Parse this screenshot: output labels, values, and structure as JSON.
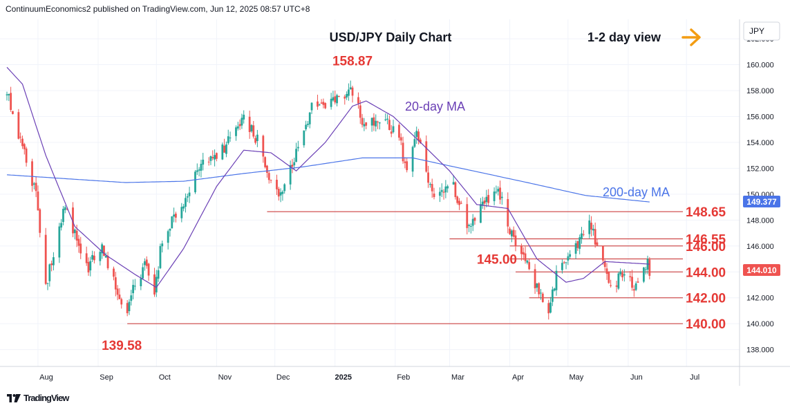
{
  "header": {
    "publisher": "ContinuumEconomics2 published on TradingView.com, Jun 12, 2025 08:57 UTC+8"
  },
  "footer": {
    "brand": "TradingView",
    "logo": "tradingview-logo-icon"
  },
  "colors": {
    "up": "#26a69a",
    "down": "#ef5350",
    "ma20": "#6a3fb5",
    "ma200": "#4a74e8",
    "level_text": "#e53935",
    "arrow": "#f39c12",
    "grid": "#f0f3fa"
  },
  "chart_data": {
    "type": "candlestick",
    "title": "USD/JPY Daily Chart",
    "view": "1-2 day view",
    "view_icon": "arrow-right-icon",
    "currency": "JPY",
    "last_price": "144.010",
    "ma200_value": "149.377",
    "ylim": [
      136.7,
      163.5
    ],
    "y_ticks": [
      "138.000",
      "140.000",
      "142.000",
      "144.000",
      "146.000",
      "148.000",
      "150.000",
      "152.000",
      "154.000",
      "156.000",
      "158.000",
      "160.000",
      "162.000"
    ],
    "x_ticks": [
      "Aug",
      "Sep",
      "Oct",
      "Nov",
      "Dec",
      "2025",
      "Feb",
      "Mar",
      "Apr",
      "May",
      "Jun",
      "Jul"
    ],
    "series": [
      {
        "name": "20-day MA"
      },
      {
        "name": "200-day MA"
      }
    ],
    "levels": [
      {
        "value": 148.65,
        "label": "148.65",
        "from": "2024-11-27"
      },
      {
        "value": 146.55,
        "label": "146.55",
        "from": "2025-03-01"
      },
      {
        "value": 146.0,
        "label": "146.00",
        "from": "2025-04-01"
      },
      {
        "value": 145.0,
        "label": "145.00",
        "from": "2025-04-01"
      },
      {
        "value": 144.0,
        "label": "144.00",
        "from": "2025-04-04"
      },
      {
        "value": 142.0,
        "label": "142.00",
        "from": "2025-04-11"
      },
      {
        "value": 140.0,
        "label": "140.00",
        "from": "2024-09-16"
      }
    ],
    "annotations": [
      {
        "text": "158.87",
        "date": "2025-01-10",
        "value": 158.87
      },
      {
        "text": "139.58",
        "date": "2024-09-16",
        "value": 139.58
      }
    ],
    "anchors": [
      [
        "2024-07-16",
        157.8
      ],
      [
        "2024-07-23",
        154.0
      ],
      [
        "2024-07-31",
        150.0
      ],
      [
        "2024-08-05",
        143.0
      ],
      [
        "2024-08-15",
        149.0
      ],
      [
        "2024-08-26",
        144.2
      ],
      [
        "2024-09-03",
        146.0
      ],
      [
        "2024-09-11",
        142.2
      ],
      [
        "2024-09-16",
        140.7
      ],
      [
        "2024-09-19",
        142.8
      ],
      [
        "2024-09-26",
        144.6
      ],
      [
        "2024-09-30",
        142.5
      ],
      [
        "2024-10-04",
        146.5
      ],
      [
        "2024-10-15",
        149.5
      ],
      [
        "2024-10-23",
        152.4
      ],
      [
        "2024-11-01",
        152.8
      ],
      [
        "2024-11-15",
        155.9
      ],
      [
        "2024-11-22",
        154.1
      ],
      [
        "2024-12-03",
        149.5
      ],
      [
        "2024-12-13",
        153.5
      ],
      [
        "2024-12-20",
        156.8
      ],
      [
        "2025-01-02",
        157.4
      ],
      [
        "2025-01-10",
        158.0
      ],
      [
        "2025-01-16",
        155.2
      ],
      [
        "2025-01-24",
        155.9
      ],
      [
        "2025-02-03",
        154.5
      ],
      [
        "2025-02-07",
        151.4
      ],
      [
        "2025-02-12",
        154.6
      ],
      [
        "2025-02-21",
        149.6
      ],
      [
        "2025-03-03",
        150.6
      ],
      [
        "2025-03-11",
        147.3
      ],
      [
        "2025-03-18",
        149.3
      ],
      [
        "2025-03-26",
        150.6
      ],
      [
        "2025-04-03",
        146.3
      ],
      [
        "2025-04-09",
        144.8
      ],
      [
        "2025-04-14",
        143.1
      ],
      [
        "2025-04-21",
        140.8
      ],
      [
        "2025-04-25",
        143.7
      ],
      [
        "2025-05-02",
        144.9
      ],
      [
        "2025-05-12",
        148.4
      ],
      [
        "2025-05-16",
        145.6
      ],
      [
        "2025-05-23",
        142.8
      ],
      [
        "2025-05-30",
        144.0
      ],
      [
        "2025-06-04",
        142.8
      ],
      [
        "2025-06-09",
        144.6
      ],
      [
        "2025-06-11",
        144.6
      ],
      [
        "2025-06-12",
        144.0
      ]
    ],
    "ma20_anchors": [
      [
        "2024-07-16",
        159.8
      ],
      [
        "2024-07-24",
        158.5
      ],
      [
        "2024-08-05",
        153.0
      ],
      [
        "2024-08-20",
        147.5
      ],
      [
        "2024-09-05",
        145.3
      ],
      [
        "2024-09-20",
        143.8
      ],
      [
        "2024-10-01",
        142.8
      ],
      [
        "2024-10-15",
        145.8
      ],
      [
        "2024-11-01",
        150.6
      ],
      [
        "2024-11-15",
        153.4
      ],
      [
        "2024-11-29",
        153.2
      ],
      [
        "2024-12-12",
        151.8
      ],
      [
        "2024-12-27",
        154.0
      ],
      [
        "2025-01-10",
        156.8
      ],
      [
        "2025-01-17",
        157.2
      ],
      [
        "2025-01-31",
        156.0
      ],
      [
        "2025-02-14",
        154.0
      ],
      [
        "2025-03-01",
        151.8
      ],
      [
        "2025-03-15",
        149.2
      ],
      [
        "2025-03-31",
        148.9
      ],
      [
        "2025-04-15",
        145.0
      ],
      [
        "2025-04-30",
        143.2
      ],
      [
        "2025-05-09",
        143.5
      ],
      [
        "2025-05-20",
        144.8
      ],
      [
        "2025-06-12",
        144.6
      ]
    ],
    "ma200_anchors": [
      [
        "2024-07-16",
        151.5
      ],
      [
        "2024-08-15",
        151.2
      ],
      [
        "2024-09-15",
        150.9
      ],
      [
        "2024-10-15",
        151.0
      ],
      [
        "2024-11-15",
        151.6
      ],
      [
        "2024-12-15",
        152.1
      ],
      [
        "2025-01-15",
        152.8
      ],
      [
        "2025-02-10",
        152.8
      ],
      [
        "2025-03-10",
        151.9
      ],
      [
        "2025-04-10",
        150.9
      ],
      [
        "2025-05-10",
        149.9
      ],
      [
        "2025-06-12",
        149.4
      ]
    ],
    "chart_labels": [
      {
        "series": "20-day MA",
        "text": "20-day MA"
      },
      {
        "series": "200-day MA",
        "text": "200-day MA"
      }
    ]
  }
}
